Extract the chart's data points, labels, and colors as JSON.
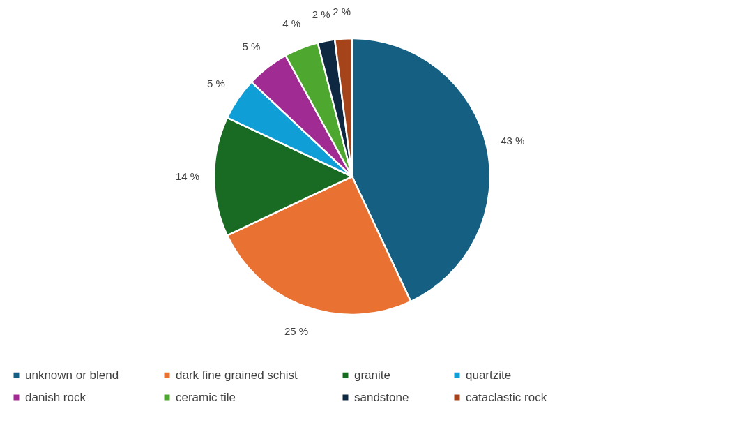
{
  "chart_data": {
    "type": "pie",
    "categories": [
      "unknown or blend",
      "dark fine grained schist",
      "granite",
      "quartzite",
      "danish rock",
      "ceramic tile",
      "sandstone",
      "cataclastic rock"
    ],
    "values": [
      43,
      25,
      14,
      5,
      5,
      4,
      2,
      2
    ],
    "colors": [
      "#156082",
      "#e97132",
      "#196b24",
      "#0f9ed5",
      "#a02b93",
      "#4ea72e",
      "#0e2841",
      "#a5441a"
    ],
    "value_labels": [
      "43 %",
      "25 %",
      "14 %",
      "5 %",
      "5 %",
      "4 %",
      "2 %",
      "2 %"
    ],
    "legend": "bottom"
  }
}
